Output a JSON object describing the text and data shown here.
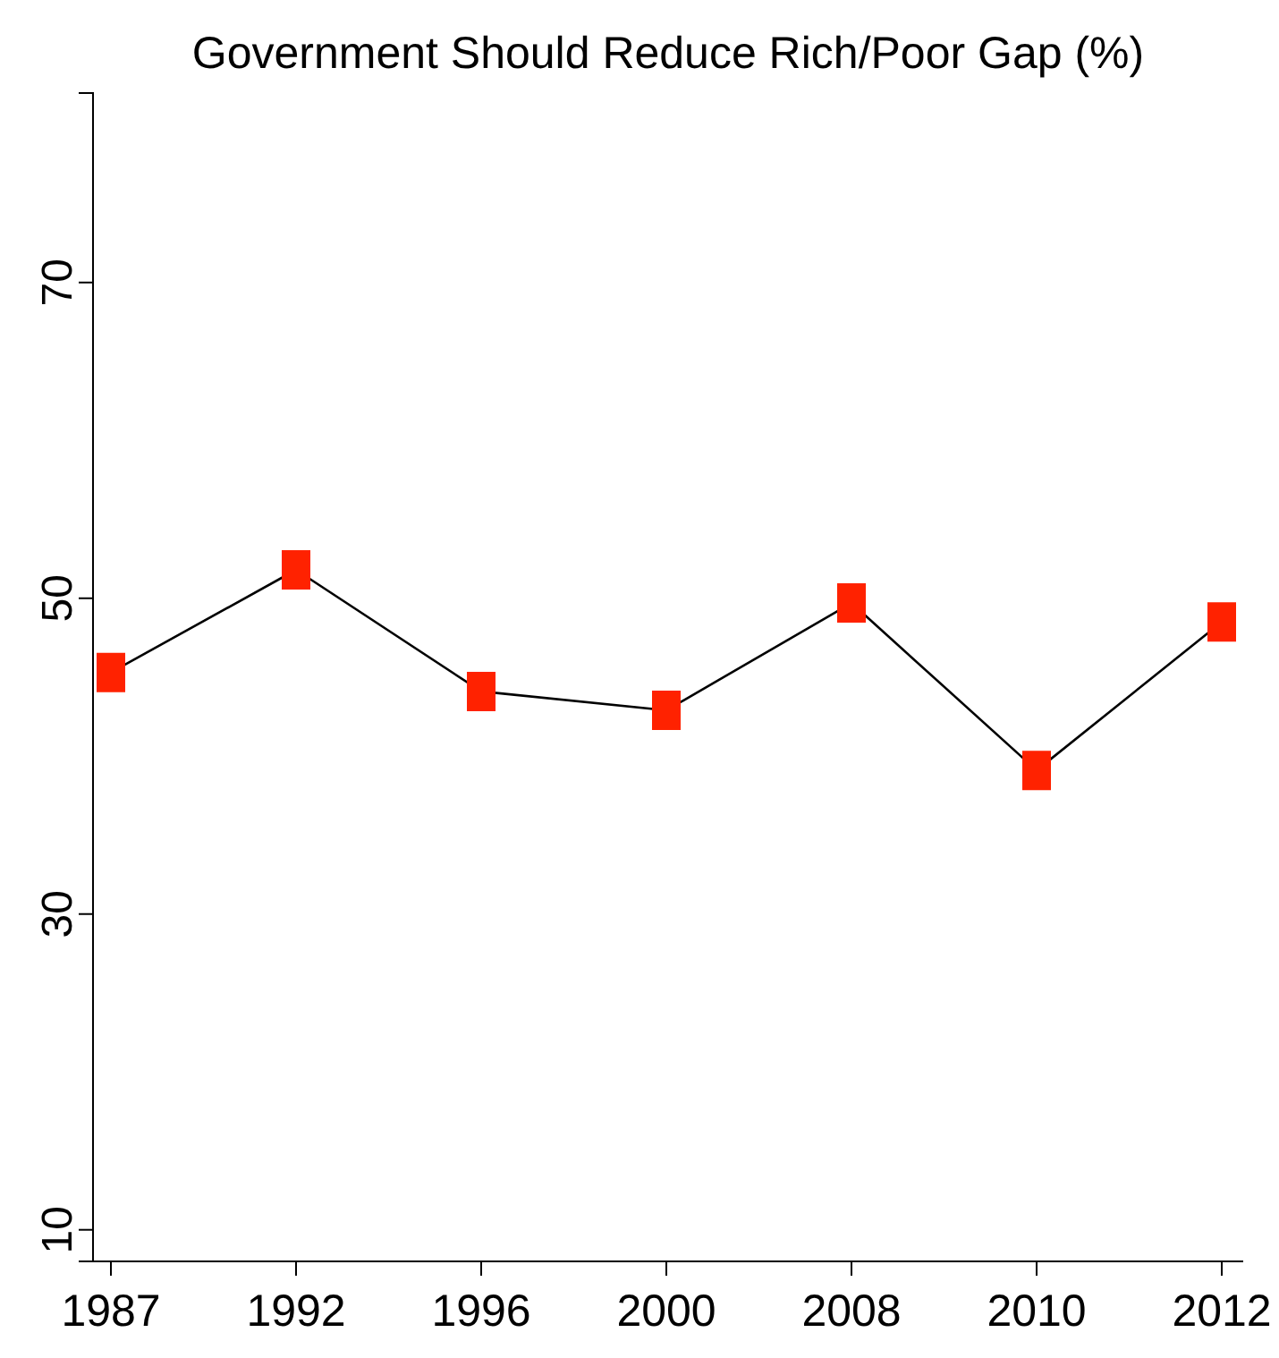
{
  "chart_data": {
    "type": "line",
    "title": "Government Should Reduce Rich/Poor Gap (%)",
    "categories": [
      "1987",
      "1992",
      "1996",
      "2000",
      "2008",
      "2010",
      "2012"
    ],
    "series": [
      {
        "color": "#ff2200",
        "values": [
          45.3,
          51.8,
          44.1,
          42.9,
          49.7,
          39.1,
          48.5
        ]
      }
    ],
    "ylim": [
      8,
      82
    ],
    "yticks": [
      10,
      30,
      50,
      70
    ],
    "grid": false,
    "legend": false,
    "marker": "square",
    "line_style": "solid"
  }
}
